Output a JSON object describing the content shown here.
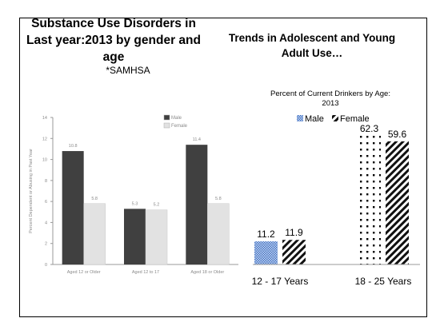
{
  "left_title": "Substance Use Disorders in Last year:2013 by gender and age",
  "source": "*SAMHSA",
  "right_title": "Trends in Adolescent and Young Adult Use…",
  "chart_data": [
    {
      "type": "bar",
      "title": "",
      "ylabel": "Percent Dependent or Abusing in Past Year",
      "xlabel": "",
      "ylim": [
        0,
        14
      ],
      "yticks": [
        "0",
        "2",
        "4",
        "6",
        "8",
        "10",
        "12",
        "14"
      ],
      "categories": [
        "Aged 12 or Older",
        "Aged 12 to 17",
        "Aged 18 or Older"
      ],
      "series": [
        {
          "name": "Male",
          "values": [
            10.8,
            5.3,
            11.4
          ],
          "labels": [
            "10.8",
            "5.3",
            "11.4"
          ],
          "color": "#404040"
        },
        {
          "name": "Female",
          "values": [
            5.8,
            5.2,
            5.8
          ],
          "labels": [
            "5.8",
            "5.2",
            "5.8"
          ],
          "color": "#e2e2e2"
        }
      ],
      "legend": "top-right",
      "grid": false
    },
    {
      "type": "bar",
      "title": "Percent of Current Drinkers by Age: 2013",
      "xlabel": "",
      "ylabel": "",
      "ylim": [
        0,
        70
      ],
      "categories": [
        "12 - 17 Years",
        "18 - 25 Years"
      ],
      "series": [
        {
          "name": "Male",
          "values": [
            11.2,
            62.3
          ],
          "labels": [
            "11.2",
            "62.3"
          ],
          "pattern": "checker-blue"
        },
        {
          "name": "Female",
          "values": [
            11.9,
            59.6
          ],
          "labels": [
            "11.9",
            "59.6"
          ],
          "pattern": "diagonal-black"
        }
      ],
      "legend": "top",
      "grid": false
    }
  ]
}
